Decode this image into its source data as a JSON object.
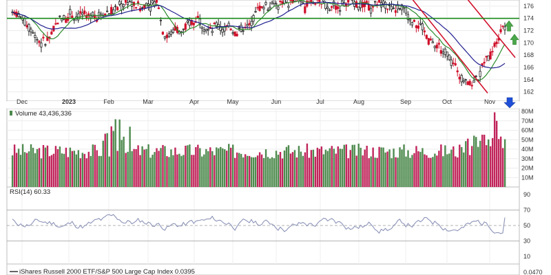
{
  "chart_data": [
    {
      "type": "candlestick",
      "panel": "price",
      "title": "",
      "y_ticks": [
        162,
        164,
        166,
        168,
        170,
        172,
        174,
        176
      ],
      "ylim": [
        160.5,
        177
      ],
      "x_labels": [
        "Dec",
        "2023",
        "Feb",
        "Mar",
        "Apr",
        "May",
        "Jun",
        "Jul",
        "Aug",
        "Sep",
        "Oct",
        "Nov"
      ],
      "horizontal_line": 174,
      "series": [
        {
          "color": "#d0102a",
          "values": []
        },
        {
          "color": "#2a8a2a",
          "values": []
        },
        {
          "color": "#1f1f8f",
          "values": []
        }
      ],
      "candles_sample": [
        [
          175.8,
          176.5,
          174.6,
          175.3
        ],
        [
          175.1,
          175.9,
          173.0,
          174.0
        ],
        [
          173.6,
          174.2,
          170.8,
          171.3
        ],
        [
          171.4,
          172.2,
          169.0,
          169.7
        ],
        [
          169.8,
          171.3,
          168.4,
          170.8
        ],
        [
          170.7,
          172.1,
          169.9,
          171.5
        ],
        [
          171.7,
          173.4,
          171.0,
          173.1
        ],
        [
          173.0,
          174.4,
          172.3,
          174.0
        ],
        [
          174.2,
          175.6,
          173.8,
          175.2
        ],
        [
          175.0,
          176.4,
          174.3,
          176.0
        ]
      ],
      "annotations": [
        "down-trend-channel",
        "blue-down-arrow",
        "green-up-arrow",
        "green-up-arrow"
      ]
    },
    {
      "type": "bar",
      "panel": "volume",
      "title": "Volume 43,436,336",
      "y_ticks": [
        "10M",
        "20M",
        "30M",
        "40M",
        "50M",
        "60M",
        "70M",
        "80M"
      ],
      "ylim": [
        0,
        80
      ],
      "up_color": "#4e8a4e",
      "down_color": "#c0245a",
      "values_sample": [
        33,
        22,
        28,
        35,
        30,
        24,
        40,
        42,
        26,
        31,
        44,
        38,
        27,
        29,
        33,
        36,
        41,
        30,
        25,
        34,
        75,
        62,
        58,
        47,
        52,
        38,
        36,
        30,
        34,
        28
      ]
    },
    {
      "type": "line",
      "panel": "rsi",
      "title": "RSI(14) 60.33",
      "y_ticks": [
        90,
        70,
        50,
        30,
        10
      ],
      "ylim": [
        0,
        100
      ],
      "reference_lines": [
        70,
        50,
        30
      ],
      "color": "#8c93b8",
      "last_value": 60.33
    },
    {
      "type": "line",
      "panel": "ratio",
      "title": "iShares Russell 2000 ETF/S&P 500 Large Cap Index 0.0395",
      "right_label": "0.0470"
    }
  ]
}
